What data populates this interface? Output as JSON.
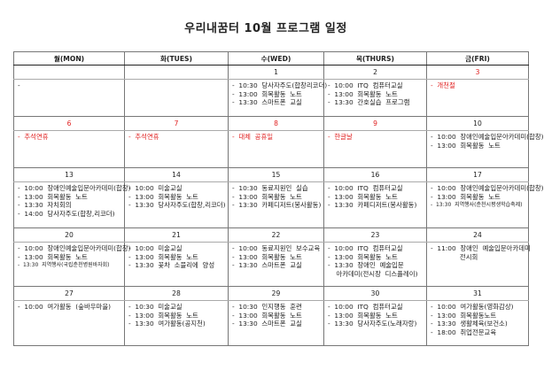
{
  "title": "우리내꿈터 10월 프로그램 일정",
  "colors": {
    "holiday": "#e02020",
    "text": "#222222"
  },
  "headers": [
    "월(MON)",
    "화(TUES)",
    "수(WED)",
    "목(THURS)",
    "금(FRI)"
  ],
  "weeks": [
    {
      "days": [
        {
          "date": "",
          "items": [
            "-"
          ]
        },
        {
          "date": "",
          "items": []
        },
        {
          "date": "1",
          "items": [
            "-  10:30  당사자주도(합창리코더)",
            "-  13:00  회복활동  노트",
            "-  13:30  스마트폰  교실"
          ]
        },
        {
          "date": "2",
          "items": [
            "-  10:00  ITQ  컴퓨터교실",
            "-  13:00  회복활동  노트",
            "-  13:30  간호실습  프로그램"
          ]
        },
        {
          "date": "3",
          "red": true,
          "items": [
            "-  개천절"
          ]
        }
      ]
    },
    {
      "days": [
        {
          "date": "6",
          "red": true,
          "items": [
            "-  추석연휴"
          ]
        },
        {
          "date": "7",
          "red": true,
          "items": [
            "-  추석연휴"
          ]
        },
        {
          "date": "8",
          "red": true,
          "items": [
            "-  대체  공휴일"
          ]
        },
        {
          "date": "9",
          "red": true,
          "items": [
            "-  한글날"
          ]
        },
        {
          "date": "10",
          "items": [
            "-  10:00  장애인예술입문아카데미(합창)",
            "-  13:00  회복활동  노트"
          ]
        }
      ]
    },
    {
      "days": [
        {
          "date": "13",
          "items": [
            "-  10:00  장애인예술입문아카데미(합창)",
            "-  13:00  회복활동  노트",
            "-  13:30  자치회의",
            "-  14:00  당사자주도(합창,리코더)"
          ]
        },
        {
          "date": "14",
          "items": [
            "-  10:00  미술교실",
            "-  13:00  회복활동  노트",
            "-  13:30  당사자주도(합창,리코더)"
          ]
        },
        {
          "date": "15",
          "items": [
            "-  10:30  동료지원인  실습",
            "-  13:00  회복활동  노트",
            "-  13:30  카페디저트(봉사활동)"
          ]
        },
        {
          "date": "16",
          "items": [
            "-  10:00  ITQ  컴퓨터교실",
            "-  13:00  회복활동  노트",
            "-  13:30  카페디저트(봉사활동)"
          ]
        },
        {
          "date": "17",
          "items": [
            "-  10:00  장애인예술입문아카데미(합창)",
            "-  13:00  회복활동  노트",
            "-  13:30  지역행사(춘천시평생학습축제)"
          ]
        }
      ]
    },
    {
      "days": [
        {
          "date": "20",
          "items": [
            "-  10:00  장애인예술입문아카데미(합창)",
            "-  13:00  회복활동  노트",
            "-  13:30  지역행사(국립춘천병원바자회)"
          ]
        },
        {
          "date": "21",
          "items": [
            "-  10:00  미술교실",
            "-  13:00  회복활동  노트",
            "-  13:30  꽃차  소믈리에  양성"
          ]
        },
        {
          "date": "22",
          "items": [
            "-  10:00  동료지원인  보수교육",
            "-  13:00  회복활동  노트",
            "-  13:30  스마트폰  교실"
          ]
        },
        {
          "date": "23",
          "items": [
            "-  10:00  ITQ  컴퓨터교실",
            "-  13:00  회복활동  노트",
            "-  13:30  장애인  예술입문",
            "    아카데미(전시장  디스플레이)"
          ]
        },
        {
          "date": "24",
          "items": [
            "-  11:00  장애인  예술입문아카데미",
            "              전시회"
          ]
        }
      ]
    },
    {
      "days": [
        {
          "date": "27",
          "items": [
            "-  10:00  여가활동  (숲바우마을)"
          ]
        },
        {
          "date": "28",
          "items": [
            "-  10:30  미술교실",
            "-  13:00  회복활동  노트",
            "-  13:30  여가활동(공지천)"
          ]
        },
        {
          "date": "29",
          "items": [
            "-  10:30  인지행동  훈련",
            "-  13:00  회복활동  노트",
            "-  13:30  스마트폰  교실"
          ]
        },
        {
          "date": "30",
          "items": [
            "-  10:00  ITQ  컴퓨터교실",
            "-  13:00  회복활동  노트",
            "-  13:30  당사자주도(노래자랑)"
          ]
        },
        {
          "date": "31",
          "items": [
            "-  10:00  여가활동(영화감상)",
            "-  13:00  회복활동노트",
            "-  13:30  생활체육(보건소)",
            "-  18:00  취업전문교육"
          ]
        }
      ]
    }
  ]
}
